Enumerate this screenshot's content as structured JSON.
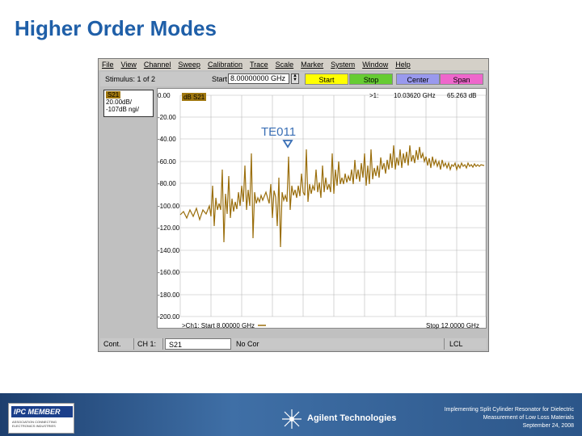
{
  "slide": {
    "title": "Higher Order Modes"
  },
  "vna": {
    "menu": [
      "File",
      "View",
      "Channel",
      "Sweep",
      "Calibration",
      "Trace",
      "Scale",
      "Marker",
      "System",
      "Window",
      "Help"
    ],
    "stimulus_label": "Stimulus: 1 of 2",
    "start_label": "Start",
    "start_value": "8.00000000 GHz",
    "buttons": {
      "start": "Start",
      "stop": "Stop",
      "center": "Center",
      "span": "Span"
    },
    "trace_box": {
      "tag": "S21",
      "line1": "20.00dB/",
      "line2": "-107dB",
      "line3": "ngi/"
    },
    "trace_badge": "dB S21",
    "marker_label": ">1:",
    "marker_freq": "10.03620 GHz",
    "marker_value": "65.263 dB",
    "y_ticks": [
      "0.00",
      "-20.00",
      "-40.00",
      "-60.00",
      "-80.00",
      "-100.00",
      "-120.00",
      "-140.00",
      "-160.00",
      "-180.00",
      "-200.00"
    ],
    "bottom_start": ">Ch1: Start 8.00000 GHz",
    "bottom_stop": "Stop 12.0000 GHz",
    "annotation": "TE011",
    "status": {
      "cont": "Cont.",
      "channel": "CH 1:",
      "param": "S21",
      "cor": "No Cor",
      "lcl": "LCL"
    },
    "colors": {
      "trace": "#9a6e0c",
      "annotation": "#3a6fb5",
      "start": "#ffff00",
      "stop": "#66cc33",
      "center": "#9999ee",
      "span": "#ee66cc"
    }
  },
  "footer": {
    "ipc_logo": "IPC MEMBER",
    "ipc_sub": "ASSOCIATION CONNECTING ELECTRONICS INDUSTRIES",
    "brand": "Agilent Technologies",
    "note_line1": "Implementing Split Cylinder Resonator for Dielectric",
    "note_line2": "Measurement of Low Loss Materials",
    "note_line3": "September 24, 2008"
  }
}
